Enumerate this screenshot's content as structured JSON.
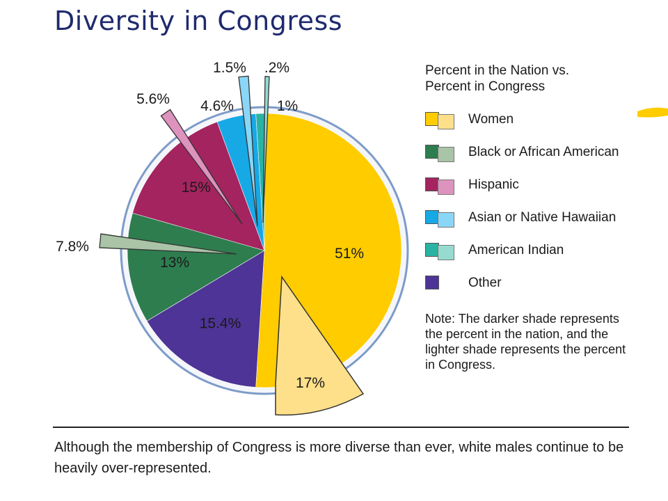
{
  "title": "Diversity in Congress",
  "legend": {
    "title": "Percent in the Nation vs.\nPercent in Congress",
    "items": [
      {
        "label": "Women",
        "dark": "#ffcc00",
        "light": "#ffe08a"
      },
      {
        "label": "Black or African American",
        "dark": "#2e7d4f",
        "light": "#a9c4a6"
      },
      {
        "label": "Hispanic",
        "dark": "#a3245f",
        "light": "#dd93be"
      },
      {
        "label": "Asian or Native Hawaiian",
        "dark": "#17a8e6",
        "light": "#8ad6f6"
      },
      {
        "label": "American Indian",
        "dark": "#2ab3a3",
        "light": "#95dbd0"
      },
      {
        "label": "Other",
        "dark": "#4d3496",
        "light": null
      }
    ]
  },
  "note": "Note: The darker shade represents the percent in the nation, and the lighter shade represents the percent in Congress.",
  "caption": "Although the membership of Congress is more diverse than ever, white males continue to be heavily over-represented.",
  "chart_data": {
    "type": "pie",
    "nation": [
      {
        "group": "Women",
        "value": 51,
        "label": "51%"
      },
      {
        "group": "Other",
        "value": 15.4,
        "label": "15.4%"
      },
      {
        "group": "Black or African American",
        "value": 13,
        "label": "13%"
      },
      {
        "group": "Hispanic",
        "value": 15,
        "label": "15%"
      },
      {
        "group": "Asian or Native Hawaiian",
        "value": 4.6,
        "label": "4.6%"
      },
      {
        "group": "American Indian",
        "value": 1,
        "label": "1%"
      }
    ],
    "congress": [
      {
        "group": "Women",
        "value": 17,
        "label": "17%"
      },
      {
        "group": "Black or African American",
        "value": 7.8,
        "label": "7.8%"
      },
      {
        "group": "Hispanic",
        "value": 5.6,
        "label": "5.6%"
      },
      {
        "group": "Asian or Native Hawaiian",
        "value": 1.5,
        "label": "1.5%"
      },
      {
        "group": "American Indian",
        "value": 0.2,
        "label": ".2%"
      }
    ]
  }
}
